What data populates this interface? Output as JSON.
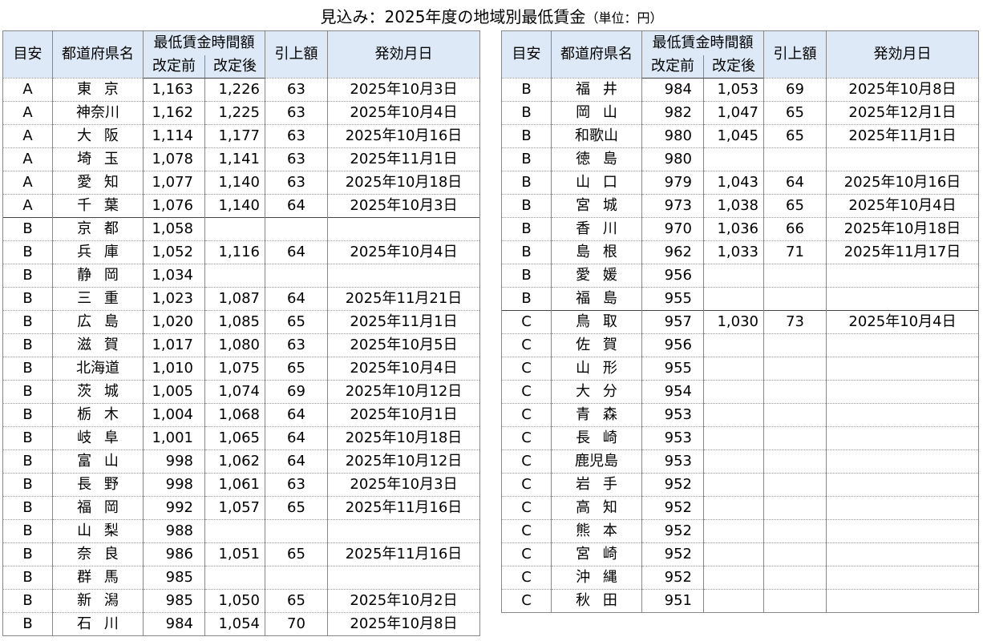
{
  "title": "見込み：2025年度の地域別最低賃金",
  "unit": "（単位：円）",
  "tables": [
    {
      "header": {
        "grade": "目安",
        "prefecture": "都道府県名",
        "wage": "最低賃金時間額",
        "before": "改定前",
        "after": "改定後",
        "raise": "引上額",
        "date": "発効月日"
      },
      "rows": [
        [
          "A",
          "東 京",
          "1,163",
          "1,226",
          "63",
          "2025年10月3日"
        ],
        [
          "A",
          "神奈川",
          "1,162",
          "1,225",
          "63",
          "2025年10月4日"
        ],
        [
          "A",
          "大 阪",
          "1,114",
          "1,177",
          "63",
          "2025年10月16日"
        ],
        [
          "A",
          "埼 玉",
          "1,078",
          "1,141",
          "63",
          "2025年11月1日"
        ],
        [
          "A",
          "愛 知",
          "1,077",
          "1,140",
          "63",
          "2025年10月18日"
        ],
        [
          "A",
          "千 葉",
          "1,076",
          "1,140",
          "64",
          "2025年10月3日"
        ],
        [
          "B",
          "京 都",
          "1,058",
          null,
          null,
          null
        ],
        [
          "B",
          "兵 庫",
          "1,052",
          "1,116",
          "64",
          "2025年10月4日"
        ],
        [
          "B",
          "静 岡",
          "1,034",
          null,
          null,
          null
        ],
        [
          "B",
          "三 重",
          "1,023",
          "1,087",
          "64",
          "2025年11月21日"
        ],
        [
          "B",
          "広 島",
          "1,020",
          "1,085",
          "65",
          "2025年11月1日"
        ],
        [
          "B",
          "滋 賀",
          "1,017",
          "1,080",
          "63",
          "2025年10月5日"
        ],
        [
          "B",
          "北海道",
          "1,010",
          "1,075",
          "65",
          "2025年10月4日"
        ],
        [
          "B",
          "茨 城",
          "1,005",
          "1,074",
          "69",
          "2025年10月12日"
        ],
        [
          "B",
          "栃 木",
          "1,004",
          "1,068",
          "64",
          "2025年10月1日"
        ],
        [
          "B",
          "岐 阜",
          "1,001",
          "1,065",
          "64",
          "2025年10月18日"
        ],
        [
          "B",
          "富 山",
          "998",
          "1,062",
          "64",
          "2025年10月12日"
        ],
        [
          "B",
          "長 野",
          "998",
          "1,061",
          "63",
          "2025年10月3日"
        ],
        [
          "B",
          "福 岡",
          "992",
          "1,057",
          "65",
          "2025年11月16日"
        ],
        [
          "B",
          "山 梨",
          "988",
          null,
          null,
          null
        ],
        [
          "B",
          "奈 良",
          "986",
          "1,051",
          "65",
          "2025年11月16日"
        ],
        [
          "B",
          "群 馬",
          "985",
          null,
          null,
          null
        ],
        [
          "B",
          "新 潟",
          "985",
          "1,050",
          "65",
          "2025年10月2日"
        ],
        [
          "B",
          "石 川",
          "984",
          "1,054",
          "70",
          "2025年10月8日"
        ]
      ]
    },
    {
      "header": {
        "grade": "目安",
        "prefecture": "都道府県名",
        "wage": "最低賃金時間額",
        "before": "改定前",
        "after": "改定後",
        "raise": "引上額",
        "date": "発効月日"
      },
      "rows": [
        [
          "B",
          "福 井",
          "984",
          "1,053",
          "69",
          "2025年10月8日"
        ],
        [
          "B",
          "岡 山",
          "982",
          "1,047",
          "65",
          "2025年12月1日"
        ],
        [
          "B",
          "和歌山",
          "980",
          "1,045",
          "65",
          "2025年11月1日"
        ],
        [
          "B",
          "徳 島",
          "980",
          null,
          null,
          null
        ],
        [
          "B",
          "山 口",
          "979",
          "1,043",
          "64",
          "2025年10月16日"
        ],
        [
          "B",
          "宮 城",
          "973",
          "1,038",
          "65",
          "2025年10月4日"
        ],
        [
          "B",
          "香 川",
          "970",
          "1,036",
          "66",
          "2025年10月18日"
        ],
        [
          "B",
          "島 根",
          "962",
          "1,033",
          "71",
          "2025年11月17日"
        ],
        [
          "B",
          "愛 媛",
          "956",
          null,
          null,
          null
        ],
        [
          "B",
          "福 島",
          "955",
          null,
          null,
          null
        ],
        [
          "C",
          "鳥 取",
          "957",
          "1,030",
          "73",
          "2025年10月4日"
        ],
        [
          "C",
          "佐 賀",
          "956",
          null,
          null,
          null
        ],
        [
          "C",
          "山 形",
          "955",
          null,
          null,
          null
        ],
        [
          "C",
          "大 分",
          "954",
          null,
          null,
          null
        ],
        [
          "C",
          "青 森",
          "953",
          null,
          null,
          null
        ],
        [
          "C",
          "長 崎",
          "953",
          null,
          null,
          null
        ],
        [
          "C",
          "鹿児島",
          "953",
          null,
          null,
          null
        ],
        [
          "C",
          "岩 手",
          "952",
          null,
          null,
          null
        ],
        [
          "C",
          "高 知",
          "952",
          null,
          null,
          null
        ],
        [
          "C",
          "熊 本",
          "952",
          null,
          null,
          null
        ],
        [
          "C",
          "宮 崎",
          "952",
          null,
          null,
          null
        ],
        [
          "C",
          "沖 縄",
          "952",
          null,
          null,
          null
        ],
        [
          "C",
          "秋 田",
          "951",
          null,
          null,
          null
        ]
      ]
    }
  ]
}
